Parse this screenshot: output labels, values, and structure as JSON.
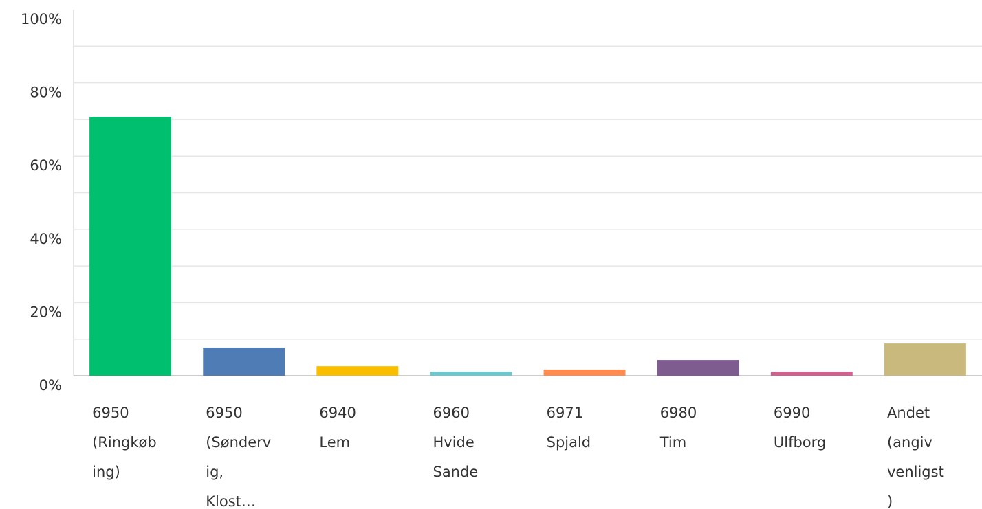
{
  "chart_data": {
    "type": "bar",
    "categories": [
      [
        "6950",
        "(Ringkøb",
        "ing)"
      ],
      [
        "6950",
        "(Sønderv",
        "ig,",
        "Klost…"
      ],
      [
        "6940",
        "Lem"
      ],
      [
        "6960",
        "Hvide",
        "Sande"
      ],
      [
        "6971",
        "Spjald"
      ],
      [
        "6980",
        "Tim"
      ],
      [
        "6990",
        "Ulfborg"
      ],
      [
        "Andet",
        "(angiv",
        "venligst",
        ")"
      ]
    ],
    "values": [
      70.7,
      7.7,
      2.6,
      1.1,
      1.7,
      4.3,
      1.1,
      8.8
    ],
    "colors": [
      "#00bf6f",
      "#507cb6",
      "#f9be00",
      "#6bc8cd",
      "#ff8b4f",
      "#7f5c8f",
      "#d25f90",
      "#c9b97c"
    ],
    "ylim": [
      0,
      100
    ],
    "yticks": [
      {
        "value": 0,
        "label": "0%"
      },
      {
        "value": 20,
        "label": "20%"
      },
      {
        "value": 40,
        "label": "40%"
      },
      {
        "value": 60,
        "label": "60%"
      },
      {
        "value": 80,
        "label": "80%"
      },
      {
        "value": 100,
        "label": "100%"
      }
    ],
    "minor_yticks": [
      10,
      30,
      50,
      70,
      90
    ],
    "grid": true
  }
}
